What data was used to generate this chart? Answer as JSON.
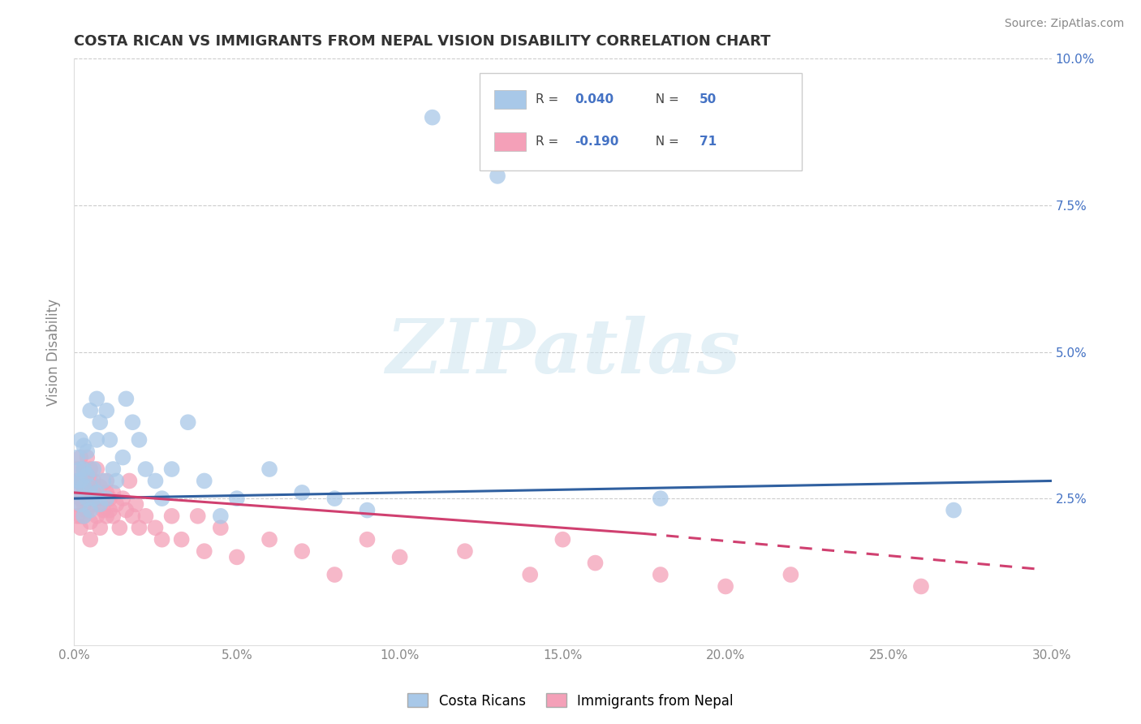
{
  "title": "COSTA RICAN VS IMMIGRANTS FROM NEPAL VISION DISABILITY CORRELATION CHART",
  "source": "Source: ZipAtlas.com",
  "ylabel": "Vision Disability",
  "xlim": [
    0.0,
    0.3
  ],
  "ylim": [
    0.0,
    0.1
  ],
  "blue_color": "#a8c8e8",
  "pink_color": "#f4a0b8",
  "blue_line_color": "#3060a0",
  "pink_line_color": "#d04070",
  "legend_label_blue": "Costa Ricans",
  "legend_label_pink": "Immigrants from Nepal",
  "watermark_text": "ZIPatlas",
  "grid_color": "#cccccc",
  "background_color": "#ffffff",
  "title_color": "#333333",
  "axis_color": "#888888",
  "right_tick_color": "#4472c4",
  "blue_R": "0.040",
  "blue_N": "50",
  "pink_R": "-0.190",
  "pink_N": "71",
  "blue_scatter_x": [
    0.001,
    0.001,
    0.001,
    0.002,
    0.002,
    0.002,
    0.002,
    0.003,
    0.003,
    0.003,
    0.003,
    0.004,
    0.004,
    0.004,
    0.005,
    0.005,
    0.005,
    0.006,
    0.006,
    0.007,
    0.007,
    0.007,
    0.008,
    0.008,
    0.009,
    0.01,
    0.01,
    0.011,
    0.012,
    0.013,
    0.015,
    0.016,
    0.018,
    0.02,
    0.022,
    0.025,
    0.027,
    0.03,
    0.035,
    0.04,
    0.045,
    0.05,
    0.06,
    0.07,
    0.08,
    0.09,
    0.11,
    0.13,
    0.18,
    0.27
  ],
  "blue_scatter_y": [
    0.026,
    0.028,
    0.032,
    0.024,
    0.028,
    0.03,
    0.035,
    0.022,
    0.027,
    0.03,
    0.034,
    0.025,
    0.029,
    0.033,
    0.023,
    0.027,
    0.04,
    0.025,
    0.03,
    0.026,
    0.035,
    0.042,
    0.024,
    0.038,
    0.028,
    0.025,
    0.04,
    0.035,
    0.03,
    0.028,
    0.032,
    0.042,
    0.038,
    0.035,
    0.03,
    0.028,
    0.025,
    0.03,
    0.038,
    0.028,
    0.022,
    0.025,
    0.03,
    0.026,
    0.025,
    0.023,
    0.09,
    0.08,
    0.025,
    0.023
  ],
  "pink_scatter_x": [
    0.001,
    0.001,
    0.001,
    0.001,
    0.001,
    0.002,
    0.002,
    0.002,
    0.002,
    0.002,
    0.003,
    0.003,
    0.003,
    0.003,
    0.004,
    0.004,
    0.004,
    0.004,
    0.005,
    0.005,
    0.005,
    0.005,
    0.005,
    0.006,
    0.006,
    0.006,
    0.007,
    0.007,
    0.007,
    0.008,
    0.008,
    0.008,
    0.009,
    0.009,
    0.01,
    0.01,
    0.01,
    0.011,
    0.011,
    0.012,
    0.012,
    0.013,
    0.014,
    0.015,
    0.016,
    0.017,
    0.018,
    0.019,
    0.02,
    0.022,
    0.025,
    0.027,
    0.03,
    0.033,
    0.038,
    0.04,
    0.045,
    0.05,
    0.06,
    0.07,
    0.08,
    0.09,
    0.1,
    0.12,
    0.14,
    0.15,
    0.16,
    0.18,
    0.2,
    0.22,
    0.26
  ],
  "pink_scatter_y": [
    0.026,
    0.028,
    0.024,
    0.022,
    0.03,
    0.025,
    0.022,
    0.028,
    0.032,
    0.02,
    0.024,
    0.027,
    0.03,
    0.022,
    0.026,
    0.029,
    0.023,
    0.032,
    0.025,
    0.028,
    0.021,
    0.03,
    0.018,
    0.026,
    0.024,
    0.028,
    0.022,
    0.025,
    0.03,
    0.024,
    0.027,
    0.02,
    0.025,
    0.023,
    0.022,
    0.026,
    0.028,
    0.023,
    0.025,
    0.022,
    0.026,
    0.024,
    0.02,
    0.025,
    0.023,
    0.028,
    0.022,
    0.024,
    0.02,
    0.022,
    0.02,
    0.018,
    0.022,
    0.018,
    0.022,
    0.016,
    0.02,
    0.015,
    0.018,
    0.016,
    0.012,
    0.018,
    0.015,
    0.016,
    0.012,
    0.018,
    0.014,
    0.012,
    0.01,
    0.012,
    0.01
  ],
  "blue_line": {
    "x0": 0.0,
    "y0": 0.025,
    "x1": 0.3,
    "y1": 0.028
  },
  "pink_solid_line": {
    "x0": 0.0,
    "y0": 0.026,
    "x1": 0.175,
    "y1": 0.019
  },
  "pink_dash_line": {
    "x0": 0.175,
    "y0": 0.019,
    "x1": 0.295,
    "y1": 0.013
  }
}
